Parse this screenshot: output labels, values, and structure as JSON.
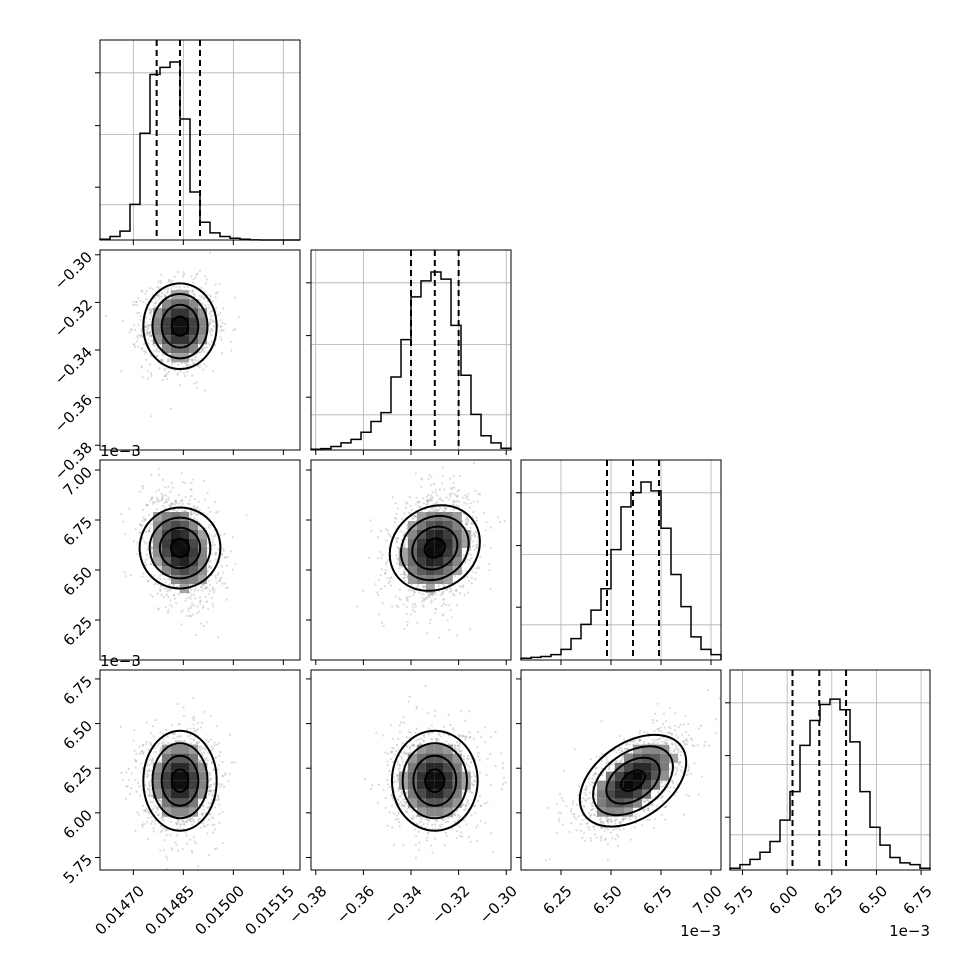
{
  "chart_data": {
    "type": "corner",
    "parameters": [
      {
        "range": [
          0.0146,
          0.0152
        ],
        "ticks": [
          0.0147,
          0.01485,
          0.015,
          0.01515
        ],
        "tick_labels": [
          "0.01470",
          "0.01485",
          "0.01500",
          "0.01515"
        ],
        "offset": "",
        "quantiles": [
          0.01477,
          0.01484,
          0.0149
        ],
        "mean": 0.01484,
        "sd": 5.5e-05,
        "hist": [
          0.004,
          0.02,
          0.05,
          0.2,
          0.6,
          0.93,
          0.97,
          1.0,
          0.68,
          0.27,
          0.1,
          0.04,
          0.02,
          0.01,
          0.004,
          0.001,
          0,
          0,
          0,
          0
        ]
      },
      {
        "range": [
          -0.382,
          -0.298
        ],
        "ticks": [
          -0.38,
          -0.36,
          -0.34,
          -0.32,
          -0.3
        ],
        "tick_labels": [
          "−0.38",
          "−0.36",
          "−0.34",
          "−0.32",
          "−0.30"
        ],
        "offset": "",
        "quantiles": [
          -0.34,
          -0.33,
          -0.32
        ],
        "mean": -0.33,
        "sd": 0.009,
        "hist": [
          0.004,
          0.008,
          0.02,
          0.04,
          0.06,
          0.1,
          0.16,
          0.21,
          0.41,
          0.62,
          0.86,
          0.95,
          1.0,
          0.96,
          0.7,
          0.42,
          0.2,
          0.08,
          0.04,
          0.01
        ]
      },
      {
        "range": [
          6.05,
          7.05
        ],
        "ticks": [
          6.25,
          6.5,
          6.75,
          7.0
        ],
        "tick_labels": [
          "6.25",
          "6.50",
          "6.75",
          "7.00"
        ],
        "offset": "1e−3",
        "quantiles": [
          6.48,
          6.61,
          6.74
        ],
        "mean": 6.61,
        "sd": 0.135,
        "hist": [
          0.01,
          0.015,
          0.02,
          0.03,
          0.06,
          0.12,
          0.2,
          0.28,
          0.4,
          0.62,
          0.86,
          0.94,
          1.0,
          0.95,
          0.74,
          0.48,
          0.3,
          0.13,
          0.06,
          0.03
        ]
      },
      {
        "range": [
          5.68,
          6.8
        ],
        "ticks": [
          5.75,
          6.0,
          6.25,
          6.5,
          6.75
        ],
        "tick_labels": [
          "5.75",
          "6.00",
          "6.25",
          "6.50",
          "6.75"
        ],
        "offset": "1e−3",
        "quantiles": [
          6.03,
          6.18,
          6.33
        ],
        "mean": 6.18,
        "sd": 0.14,
        "hist": [
          0.01,
          0.03,
          0.06,
          0.1,
          0.16,
          0.28,
          0.44,
          0.7,
          0.84,
          0.93,
          0.96,
          0.9,
          0.72,
          0.44,
          0.24,
          0.14,
          0.07,
          0.04,
          0.03,
          0.01
        ]
      }
    ],
    "correlations": [
      {
        "pair": [
          1,
          0
        ],
        "rho": 0.0
      },
      {
        "pair": [
          2,
          0
        ],
        "rho": -0.25
      },
      {
        "pair": [
          2,
          1
        ],
        "rho": 0.2
      },
      {
        "pair": [
          3,
          0
        ],
        "rho": 0.0
      },
      {
        "pair": [
          3,
          1
        ],
        "rho": 0.0
      },
      {
        "pair": [
          3,
          2
        ],
        "rho": 0.6
      }
    ],
    "grid": true,
    "quantile_line_style": "dashed",
    "scatter_color": "#999999",
    "line_color": "#000000"
  }
}
